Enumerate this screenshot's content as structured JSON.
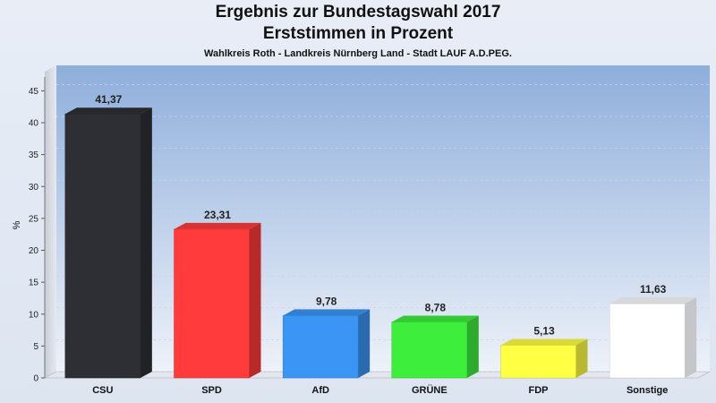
{
  "title": "Ergebnis zur Bundestagswahl 2017",
  "subtitle": "Erststimmen in Prozent",
  "subsubtitle": "Wahlkreis Roth - Landkreis Nürnberg Land - Stadt LAUF A.D.PEG.",
  "chart_data": {
    "type": "bar",
    "categories": [
      "CSU",
      "SPD",
      "AfD",
      "GRÜNE",
      "FDP",
      "Sonstige"
    ],
    "values": [
      41.37,
      23.31,
      9.78,
      8.78,
      5.13,
      11.63
    ],
    "value_labels": [
      "41,37",
      "23,31",
      "9,78",
      "8,78",
      "5,13",
      "11,63"
    ],
    "colors": [
      "#2d2f35",
      "#ff3b3b",
      "#3a95f5",
      "#3dee3d",
      "#ffff44",
      "#ffffff"
    ],
    "ylabel": "%",
    "ylim": [
      0,
      48
    ],
    "yticks": [
      0,
      5,
      10,
      15,
      20,
      25,
      30,
      35,
      40,
      45
    ],
    "grid": true
  }
}
